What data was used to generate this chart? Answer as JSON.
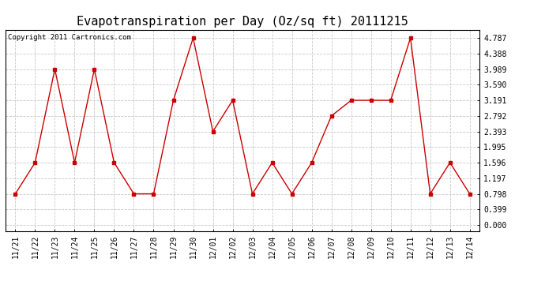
{
  "title": "Evapotranspiration per Day (Oz/sq ft) 20111215",
  "copyright": "Copyright 2011 Cartronics.com",
  "dates": [
    "11/21",
    "11/22",
    "11/23",
    "11/24",
    "11/25",
    "11/26",
    "11/27",
    "11/28",
    "11/29",
    "11/30",
    "12/01",
    "12/02",
    "12/03",
    "12/04",
    "12/05",
    "12/06",
    "12/07",
    "12/08",
    "12/09",
    "12/10",
    "12/11",
    "12/12",
    "12/13",
    "12/14"
  ],
  "values": [
    0.798,
    1.596,
    3.989,
    1.596,
    3.989,
    1.596,
    0.798,
    0.798,
    3.191,
    4.787,
    2.393,
    3.191,
    0.798,
    1.596,
    0.798,
    1.596,
    2.792,
    3.191,
    3.191,
    3.191,
    4.787,
    0.798,
    1.596,
    0.798
  ],
  "line_color": "#cc0000",
  "marker": "s",
  "marker_size": 2.5,
  "ylim_min": -0.15,
  "ylim_max": 5.0,
  "yticks": [
    0.0,
    0.399,
    0.798,
    1.197,
    1.596,
    1.995,
    2.393,
    2.792,
    3.191,
    3.59,
    3.989,
    4.388,
    4.787
  ],
  "background_color": "#ffffff",
  "grid_color": "#c8c8c8",
  "title_fontsize": 11,
  "tick_fontsize": 7,
  "copyright_fontsize": 6.5
}
